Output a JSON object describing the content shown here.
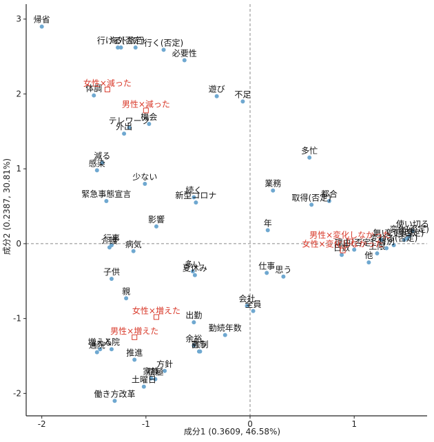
{
  "chart_data": {
    "type": "scatter",
    "xlabel": "成分1 (0.3609, 46.58%)",
    "ylabel": "成分2 (0.2387, 30.81%)",
    "xlim": [
      -2.15,
      1.7
    ],
    "ylim": [
      -2.3,
      3.2
    ],
    "xticks": [
      -2,
      -1,
      0,
      1
    ],
    "yticks": [
      -2,
      -1,
      0,
      1,
      2,
      3
    ],
    "colors": {
      "word": "#6fa8d0",
      "category": "#d93a2b",
      "axis": "#222222",
      "refline": "#888888"
    },
    "words": [
      {
        "label": "帰省",
        "x": -2.0,
        "y": 2.9
      },
      {
        "label": "海外",
        "x": -1.27,
        "y": 2.62
      },
      {
        "label": "行ける(否定)",
        "x": -1.24,
        "y": 2.62
      },
      {
        "label": "旅行",
        "x": -1.1,
        "y": 2.62
      },
      {
        "label": "行く(否定)",
        "x": -0.83,
        "y": 2.59
      },
      {
        "label": "必要性",
        "x": -0.63,
        "y": 2.45
      },
      {
        "label": "遊び",
        "x": -0.32,
        "y": 1.97
      },
      {
        "label": "不足",
        "x": -0.07,
        "y": 1.9
      },
      {
        "label": "体調",
        "x": -1.5,
        "y": 1.98
      },
      {
        "label": "テレワーク",
        "x": -1.16,
        "y": 1.55
      },
      {
        "label": "機会",
        "x": -0.97,
        "y": 1.6
      },
      {
        "label": "外出",
        "x": -1.21,
        "y": 1.47
      },
      {
        "label": "減る",
        "x": -1.42,
        "y": 1.08
      },
      {
        "label": "感染",
        "x": -1.47,
        "y": 0.98
      },
      {
        "label": "少ない",
        "x": -1.01,
        "y": 0.8
      },
      {
        "label": "緊急事態宣言",
        "x": -1.38,
        "y": 0.57
      },
      {
        "label": "続く",
        "x": -0.54,
        "y": 0.62
      },
      {
        "label": "新型コロナ",
        "x": -0.52,
        "y": 0.55
      },
      {
        "label": "影響",
        "x": -0.9,
        "y": 0.23
      },
      {
        "label": "多忙",
        "x": 0.57,
        "y": 1.15
      },
      {
        "label": "業務",
        "x": 0.22,
        "y": 0.71
      },
      {
        "label": "都合",
        "x": 0.76,
        "y": 0.57
      },
      {
        "label": "取得(否定)",
        "x": 0.59,
        "y": 0.52
      },
      {
        "label": "年",
        "x": 0.17,
        "y": 0.18
      },
      {
        "label": "使い切る",
        "x": 1.56,
        "y": 0.17
      },
      {
        "label": "変化(否定)",
        "x": 1.53,
        "y": 0.1
      },
      {
        "label": "変更(否定)",
        "x": 1.48,
        "y": 0.05
      },
      {
        "label": "毎年",
        "x": 1.51,
        "y": 0.07
      },
      {
        "label": "無い",
        "x": 1.26,
        "y": 0.05
      },
      {
        "label": "変わる(否定)",
        "x": 1.38,
        "y": -0.02
      },
      {
        "label": "特別",
        "x": 1.31,
        "y": -0.06
      },
      {
        "label": "上限",
        "x": 1.22,
        "y": -0.13
      },
      {
        "label": "理由(否定)",
        "x": 1.0,
        "y": -0.08
      },
      {
        "label": "日数",
        "x": 0.88,
        "y": -0.15
      },
      {
        "label": "他",
        "x": 1.14,
        "y": -0.25
      },
      {
        "label": "行事",
        "x": -1.33,
        "y": -0.02
      },
      {
        "label": "介護",
        "x": -1.35,
        "y": -0.05
      },
      {
        "label": "病気",
        "x": -1.12,
        "y": -0.1
      },
      {
        "label": "多い",
        "x": -0.55,
        "y": -0.37
      },
      {
        "label": "夏休み",
        "x": -0.53,
        "y": -0.42
      },
      {
        "label": "仕事",
        "x": 0.16,
        "y": -0.39
      },
      {
        "label": "思う",
        "x": 0.32,
        "y": -0.44
      },
      {
        "label": "子供",
        "x": -1.33,
        "y": -0.47
      },
      {
        "label": "親",
        "x": -1.19,
        "y": -0.73
      },
      {
        "label": "会社",
        "x": -0.03,
        "y": -0.83
      },
      {
        "label": "全員",
        "x": 0.03,
        "y": -0.9
      },
      {
        "label": "出勤",
        "x": -0.54,
        "y": -1.05
      },
      {
        "label": "勤続年数",
        "x": -0.24,
        "y": -1.22
      },
      {
        "label": "増える",
        "x": -1.44,
        "y": -1.41
      },
      {
        "label": "通院",
        "x": -1.47,
        "y": -1.45
      },
      {
        "label": "入院",
        "x": -1.33,
        "y": -1.41
      },
      {
        "label": "余裕",
        "x": -0.54,
        "y": -1.36
      },
      {
        "label": "言う",
        "x": -0.49,
        "y": -1.44
      },
      {
        "label": "強制",
        "x": -0.48,
        "y": -1.44
      },
      {
        "label": "推進",
        "x": -1.11,
        "y": -1.55
      },
      {
        "label": "方針",
        "x": -0.82,
        "y": -1.7
      },
      {
        "label": "家族",
        "x": -0.95,
        "y": -1.8
      },
      {
        "label": "積極",
        "x": -0.91,
        "y": -1.81
      },
      {
        "label": "土曜日",
        "x": -1.02,
        "y": -1.91
      },
      {
        "label": "働き方改革",
        "x": -1.3,
        "y": -2.1
      }
    ],
    "categories": [
      {
        "label": "女性×減った",
        "x": -1.37,
        "y": 2.06
      },
      {
        "label": "男性×減った",
        "x": -1.0,
        "y": 1.78
      },
      {
        "label": "男性×変化しなかった",
        "x": 0.96,
        "y": 0.03
      },
      {
        "label": "女性×変化しなかった",
        "x": 0.89,
        "y": -0.09
      },
      {
        "label": "女性×増えた",
        "x": -0.9,
        "y": -0.98
      },
      {
        "label": "男性×増えた",
        "x": -1.11,
        "y": -1.25
      }
    ]
  }
}
